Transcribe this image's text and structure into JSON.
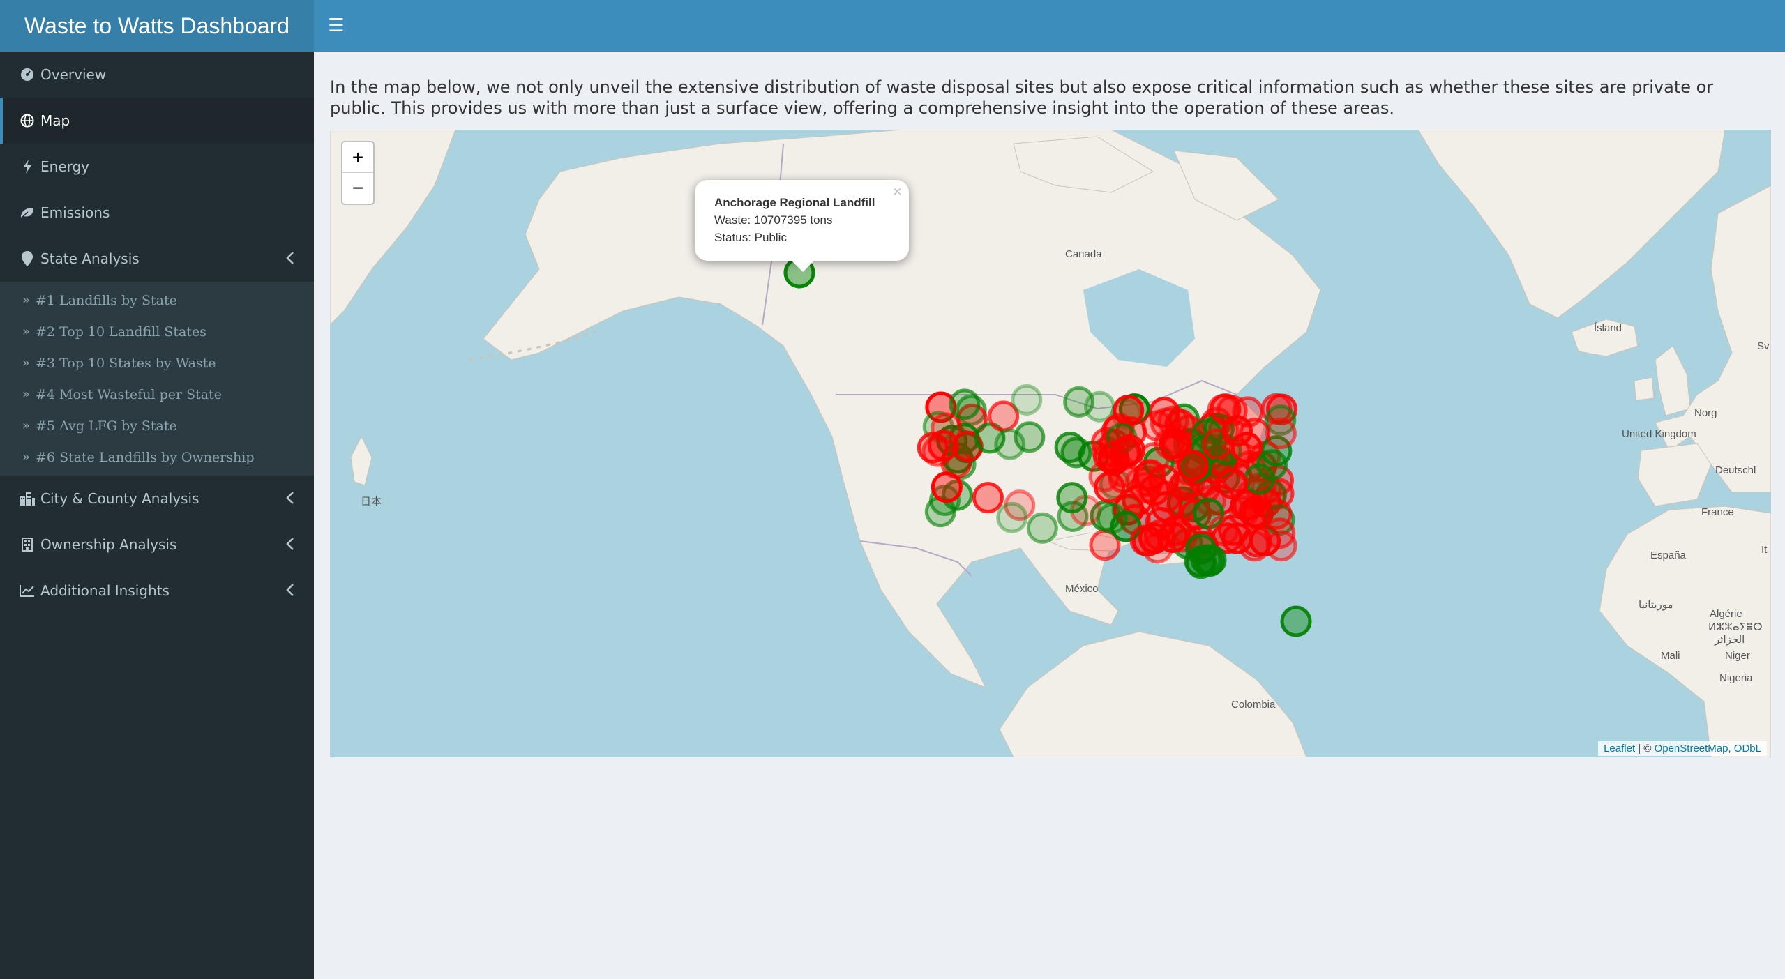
{
  "app": {
    "title": "Waste to Watts Dashboard"
  },
  "sidebar": {
    "items": [
      {
        "label": "Overview",
        "icon": "tachometer-icon"
      },
      {
        "label": "Map",
        "icon": "globe-icon"
      },
      {
        "label": "Energy",
        "icon": "bolt-icon"
      },
      {
        "label": "Emissions",
        "icon": "leaf-icon"
      },
      {
        "label": "State Analysis",
        "icon": "map-marker-icon"
      }
    ],
    "state_sub": [
      "#1 Landfills by State",
      "#2 Top 10 Landfill States",
      "#3 Top 10 States by Waste",
      "#4 Most Wasteful per State",
      "#5 Avg LFG by State",
      "#6 State Landfills by Ownership"
    ],
    "bottom_items": [
      {
        "label": "City & County Analysis",
        "icon": "city-icon"
      },
      {
        "label": "Ownership Analysis",
        "icon": "building-icon"
      },
      {
        "label": "Additional Insights",
        "icon": "line-chart-icon"
      }
    ]
  },
  "main": {
    "intro": "In the map below, we not only unveil the extensive distribution of waste disposal sites but also expose critical information such as whether these sites are private or public. This provides us with more than just a surface view, offering a comprehensive insight into the operation of these areas."
  },
  "map": {
    "zoom_in": "+",
    "zoom_out": "−",
    "popup": {
      "title": "Anchorage Regional Landfill",
      "waste": "Waste: 10707395 tons",
      "status": "Status: Public",
      "close": "×"
    },
    "labels": {
      "canada": "Canada",
      "mexico": "México",
      "island": "Ísland",
      "uk": "United Kingdom",
      "france": "France",
      "espana": "España",
      "deutsch": "Deutschl",
      "norge": "Norg",
      "algerie": "Algérie",
      "algerie_berber": "ⵍⵣⵣⴰⵢⴻⵔ",
      "algerie_ar": "الجزائر",
      "mauritania": "موريتانيا",
      "mali": "Mali",
      "niger": "Niger",
      "nigeria": "Nigeria",
      "colombia": "Colombia",
      "japan": "日本",
      "it": "It",
      "sv": "Sv"
    },
    "attribution": {
      "leaflet": "Leaflet",
      "sep": " | © ",
      "osm": "OpenStreetMap, ODbL"
    },
    "colors": {
      "public": "#008000",
      "private": "#ff0000",
      "water": "#aad3df",
      "land": "#f2efe9"
    }
  }
}
